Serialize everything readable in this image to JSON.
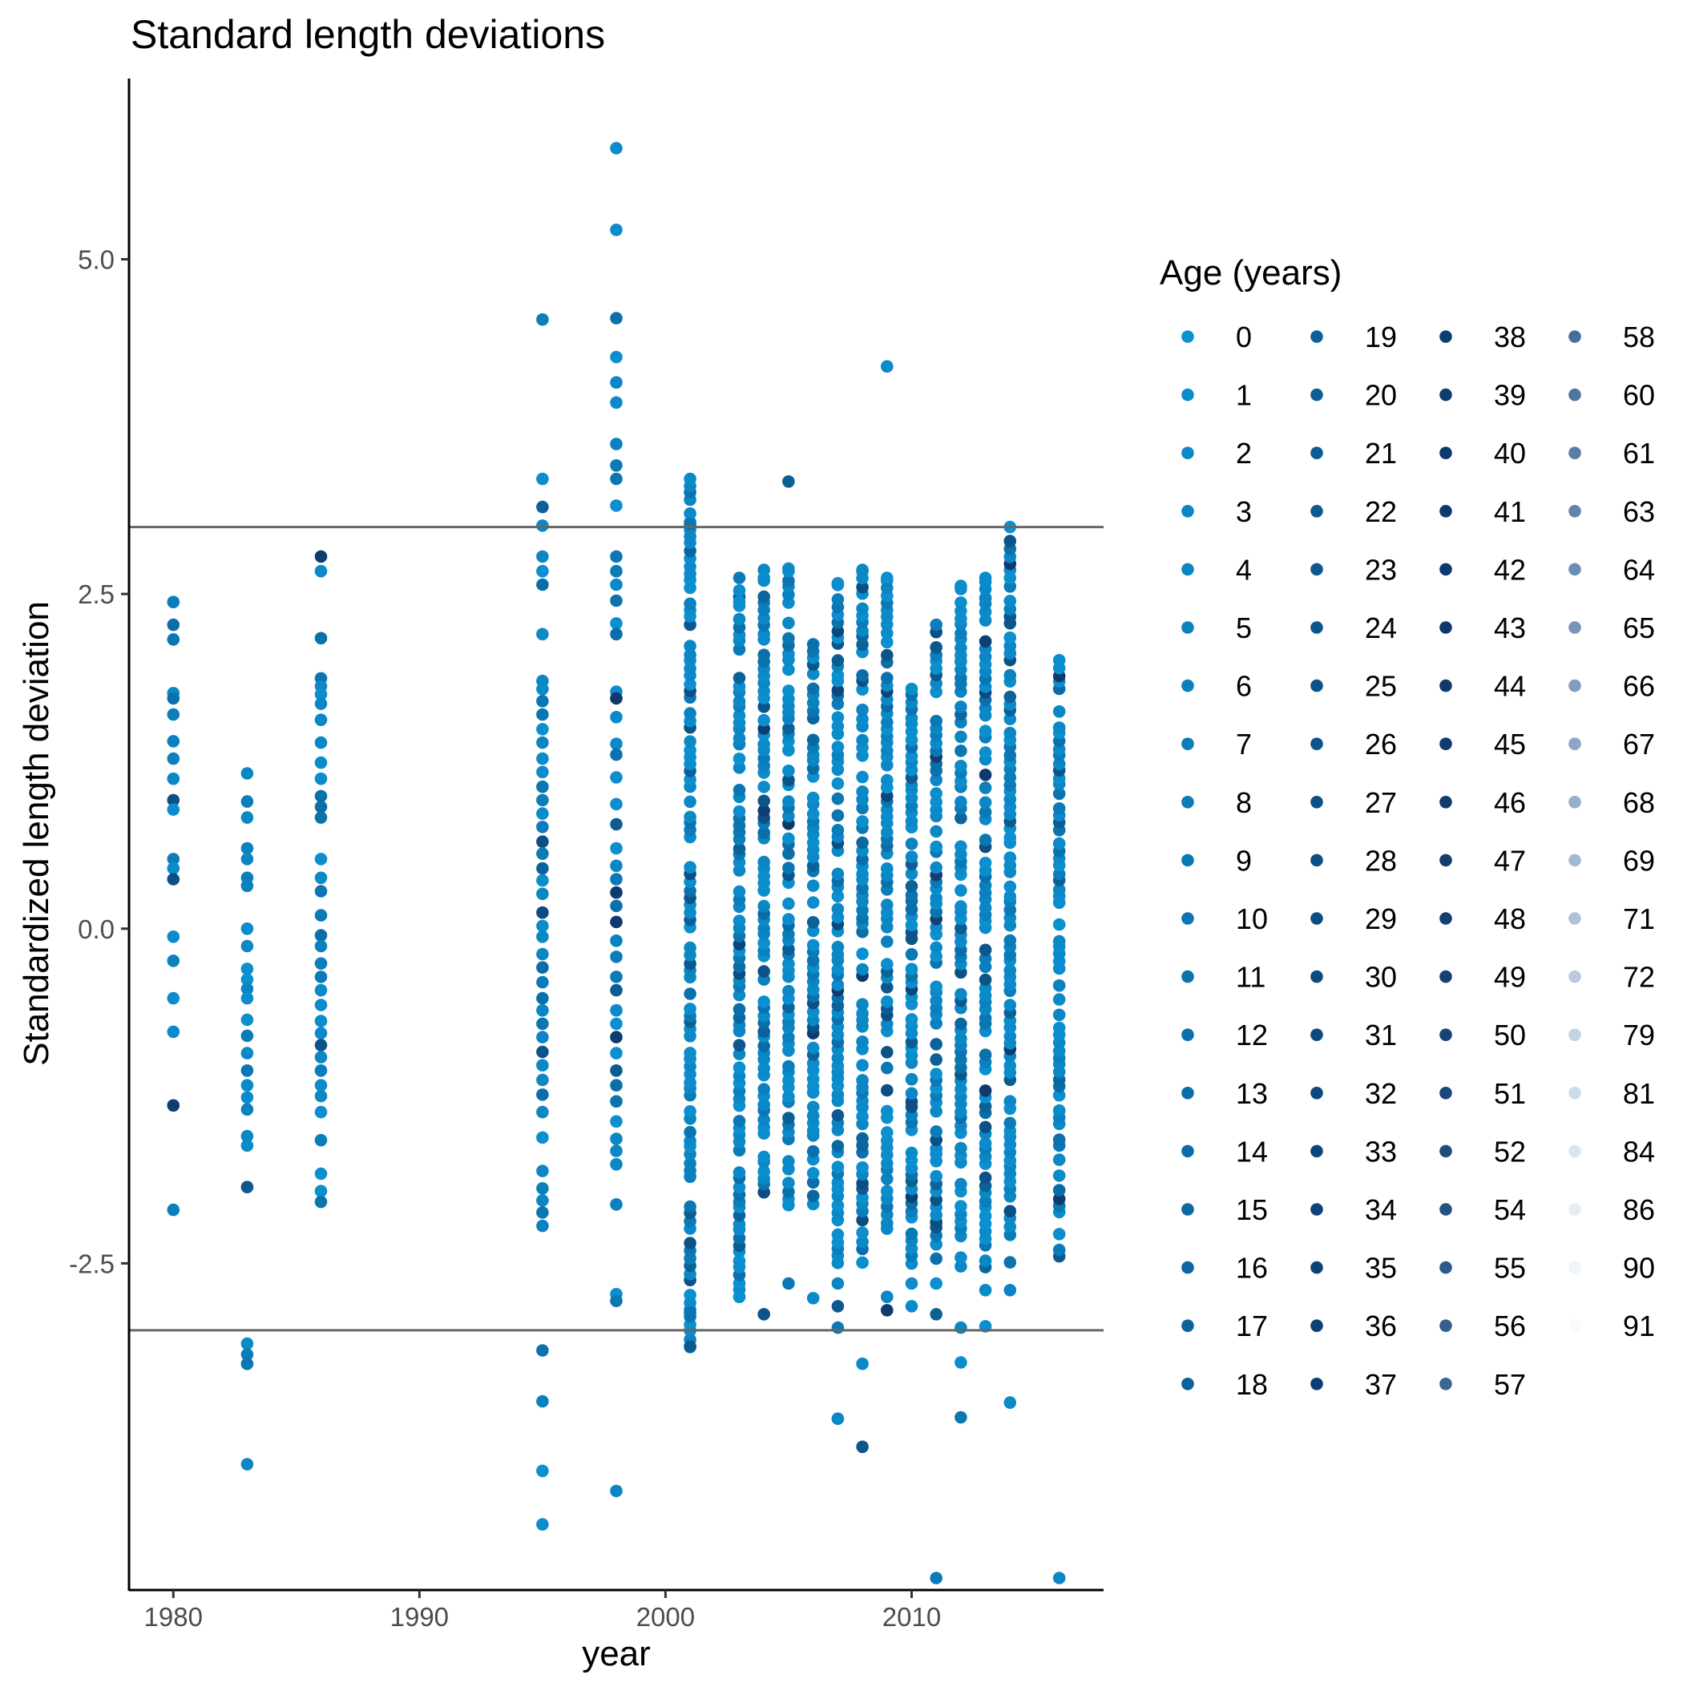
{
  "chart_data": {
    "type": "scatter",
    "title": "Standard length deviations",
    "xlabel": "year",
    "ylabel": "Standardized length deviation",
    "xlim": [
      1978.2,
      2017.8
    ],
    "ylim": [
      -4.94,
      6.35
    ],
    "xticks": [
      1980,
      1990,
      2000,
      2010
    ],
    "xtick_labels": [
      "1980",
      "1990",
      "2000",
      "2010"
    ],
    "yticks": [
      -2.5,
      0,
      2.5,
      5
    ],
    "ytick_labels": [
      "-2.5",
      "0.0",
      "2.5",
      "5.0"
    ],
    "reference_lines": [
      3,
      -3
    ],
    "reference_line_color": "#666666",
    "grid": false,
    "legend": {
      "title": "Age (years)",
      "position": "right",
      "entries": [
        {
          "name": "0",
          "color": "#0b8fcf"
        },
        {
          "name": "1",
          "color": "#0b8ccc"
        },
        {
          "name": "2",
          "color": "#0b8ac9"
        },
        {
          "name": "3",
          "color": "#0b87c6"
        },
        {
          "name": "4",
          "color": "#0b85c3"
        },
        {
          "name": "5",
          "color": "#0b82c0"
        },
        {
          "name": "6",
          "color": "#0b80bd"
        },
        {
          "name": "7",
          "color": "#0b7dba"
        },
        {
          "name": "8",
          "color": "#0b7bb7"
        },
        {
          "name": "9",
          "color": "#0b78b4"
        },
        {
          "name": "10",
          "color": "#0b76b1"
        },
        {
          "name": "11",
          "color": "#0b73ae"
        },
        {
          "name": "12",
          "color": "#0b71ab"
        },
        {
          "name": "13",
          "color": "#0b6ea8"
        },
        {
          "name": "14",
          "color": "#0b6ca5"
        },
        {
          "name": "15",
          "color": "#0b69a2"
        },
        {
          "name": "16",
          "color": "#0b679f"
        },
        {
          "name": "17",
          "color": "#0b649c"
        },
        {
          "name": "18",
          "color": "#0b6299"
        },
        {
          "name": "19",
          "color": "#0c6096"
        },
        {
          "name": "20",
          "color": "#0c5e94"
        },
        {
          "name": "21",
          "color": "#0c5c92"
        },
        {
          "name": "22",
          "color": "#0c5a90"
        },
        {
          "name": "23",
          "color": "#0c588e"
        },
        {
          "name": "24",
          "color": "#0c568c"
        },
        {
          "name": "25",
          "color": "#0c558a"
        },
        {
          "name": "26",
          "color": "#0c5388"
        },
        {
          "name": "27",
          "color": "#0c5186"
        },
        {
          "name": "28",
          "color": "#0c4f84"
        },
        {
          "name": "29",
          "color": "#0c4d82"
        },
        {
          "name": "30",
          "color": "#0c4b80"
        },
        {
          "name": "31",
          "color": "#0c4a7e"
        },
        {
          "name": "32",
          "color": "#0c487c"
        },
        {
          "name": "33",
          "color": "#0c467a"
        },
        {
          "name": "34",
          "color": "#0c4478"
        },
        {
          "name": "35",
          "color": "#0c4276"
        },
        {
          "name": "36",
          "color": "#0c4074"
        },
        {
          "name": "37",
          "color": "#0c3e72"
        },
        {
          "name": "38",
          "color": "#0c3d70"
        },
        {
          "name": "39",
          "color": "#0d3c6f"
        },
        {
          "name": "40",
          "color": "#0d3b6e"
        },
        {
          "name": "41",
          "color": "#0e3a6d"
        },
        {
          "name": "42",
          "color": "#0e396c"
        },
        {
          "name": "43",
          "color": "#0f396c"
        },
        {
          "name": "44",
          "color": "#10396c"
        },
        {
          "name": "45",
          "color": "#113a6d"
        },
        {
          "name": "46",
          "color": "#123b6e"
        },
        {
          "name": "47",
          "color": "#133c6f"
        },
        {
          "name": "48",
          "color": "#143e71"
        },
        {
          "name": "49",
          "color": "#164073"
        },
        {
          "name": "50",
          "color": "#184376"
        },
        {
          "name": "51",
          "color": "#1b477a"
        },
        {
          "name": "52",
          "color": "#204c7e"
        },
        {
          "name": "54",
          "color": "#265283"
        },
        {
          "name": "55",
          "color": "#2d5989"
        },
        {
          "name": "56",
          "color": "#355f8f"
        },
        {
          "name": "57",
          "color": "#3d6695"
        },
        {
          "name": "58",
          "color": "#466d9b"
        },
        {
          "name": "60",
          "color": "#4f75a1"
        },
        {
          "name": "61",
          "color": "#587da7"
        },
        {
          "name": "63",
          "color": "#6285ad"
        },
        {
          "name": "64",
          "color": "#6c8db3"
        },
        {
          "name": "65",
          "color": "#7695b9"
        },
        {
          "name": "66",
          "color": "#819ebf"
        },
        {
          "name": "67",
          "color": "#8ca7c6"
        },
        {
          "name": "68",
          "color": "#97b0cc"
        },
        {
          "name": "69",
          "color": "#a2b9d2"
        },
        {
          "name": "71",
          "color": "#adc2d8"
        },
        {
          "name": "72",
          "color": "#b8cbde"
        },
        {
          "name": "79",
          "color": "#c3d4e4"
        },
        {
          "name": "81",
          "color": "#cedcea"
        },
        {
          "name": "84",
          "color": "#d9e5ef"
        },
        {
          "name": "86",
          "color": "#e4edf4"
        },
        {
          "name": "90",
          "color": "#eef4f8"
        },
        {
          "name": "91",
          "color": "#f8fafc"
        }
      ]
    },
    "series": [
      {
        "x": 1980,
        "y": [
          2.44,
          2.27,
          2.16,
          1.76,
          1.72,
          1.6,
          1.4,
          1.27,
          1.12,
          0.96,
          0.89,
          0.52,
          0.45,
          0.37,
          -0.06,
          -0.24,
          -0.52,
          -0.77,
          -1.32,
          -2.1
        ]
      },
      {
        "x": 1983,
        "y": [
          1.16,
          0.95,
          0.83,
          0.6,
          0.52,
          0.38,
          0.32,
          0.0,
          -0.13,
          -0.3,
          -0.38,
          -0.45,
          -0.52,
          -0.68,
          -0.8,
          -0.93,
          -1.06,
          -1.17,
          -1.26,
          -1.35,
          -1.55,
          -1.62,
          -1.93,
          -3.1,
          -3.18,
          -3.25,
          -4.0
        ]
      },
      {
        "x": 1986,
        "y": [
          2.78,
          2.67,
          2.17,
          1.87,
          1.81,
          1.75,
          1.68,
          1.56,
          1.39,
          1.24,
          1.12,
          0.99,
          0.91,
          0.83,
          0.52,
          0.38,
          0.28,
          0.1,
          -0.05,
          -0.13,
          -0.26,
          -0.36,
          -0.46,
          -0.57,
          -0.69,
          -0.78,
          -0.87,
          -0.96,
          -1.06,
          -1.17,
          -1.25,
          -1.37,
          -1.58,
          -1.83,
          -1.96,
          -2.04
        ]
      },
      {
        "x": 1995,
        "y": [
          4.55,
          3.36,
          3.15,
          3.01,
          2.78,
          2.67,
          2.57,
          2.2,
          1.85,
          1.79,
          1.7,
          1.6,
          1.49,
          1.39,
          1.27,
          1.17,
          1.06,
          0.96,
          0.86,
          0.76,
          0.65,
          0.56,
          0.45,
          0.36,
          0.26,
          0.12,
          0.02,
          -0.06,
          -0.19,
          -0.29,
          -0.4,
          -0.52,
          -0.61,
          -0.71,
          -0.81,
          -0.92,
          -1.02,
          -1.13,
          -1.24,
          -1.37,
          -1.56,
          -1.81,
          -1.94,
          -2.03,
          -2.12,
          -2.22,
          -3.15,
          -3.53,
          -4.05,
          -4.45
        ]
      },
      {
        "x": 1998,
        "y": [
          5.83,
          5.22,
          4.56,
          4.27,
          4.08,
          3.93,
          3.62,
          3.46,
          3.36,
          3.16,
          2.78,
          2.67,
          2.57,
          2.45,
          2.28,
          2.2,
          1.77,
          1.72,
          1.58,
          1.38,
          1.3,
          1.13,
          0.93,
          0.78,
          0.6,
          0.47,
          0.37,
          0.27,
          0.17,
          0.05,
          -0.09,
          -0.21,
          -0.36,
          -0.46,
          -0.61,
          -0.71,
          -0.81,
          -0.93,
          -1.06,
          -1.17,
          -1.29,
          -1.44,
          -1.57,
          -1.66,
          -1.76,
          -2.06,
          -2.73,
          -2.78,
          -4.2
        ]
      }
    ],
    "dense_columns": [
      {
        "x": 2001,
        "ymin": -3.12,
        "ymax": 3.36,
        "extra": [
          3.36,
          3.02,
          -2.87,
          -3.12
        ]
      },
      {
        "x": 2003,
        "ymin": -2.75,
        "ymax": 2.62,
        "extra": [
          2.62,
          2.44,
          -2.75
        ]
      },
      {
        "x": 2004,
        "ymin": -2.08,
        "ymax": 2.68,
        "extra": [
          2.68,
          2.62,
          -2.88
        ]
      },
      {
        "x": 2005,
        "ymin": -2.07,
        "ymax": 2.69,
        "extra": [
          3.34,
          2.69,
          -2.65
        ]
      },
      {
        "x": 2006,
        "ymin": -2.05,
        "ymax": 2.15,
        "extra": [
          -2.76
        ]
      },
      {
        "x": 2007,
        "ymin": -2.5,
        "ymax": 2.58,
        "extra": [
          2.58,
          -2.65,
          -2.82,
          -2.98,
          -3.66
        ]
      },
      {
        "x": 2008,
        "ymin": -2.5,
        "ymax": 2.68,
        "extra": [
          2.68,
          -3.25,
          -3.87
        ]
      },
      {
        "x": 2009,
        "ymin": -2.3,
        "ymax": 2.62,
        "extra": [
          4.2,
          2.62,
          2.14,
          -2.75,
          -2.85
        ]
      },
      {
        "x": 2010,
        "ymin": -2.55,
        "ymax": 1.85,
        "extra": [
          -2.65,
          -2.82
        ]
      },
      {
        "x": 2011,
        "ymin": -2.46,
        "ymax": 2.28,
        "extra": [
          -2.65,
          -2.88,
          -4.85
        ]
      },
      {
        "x": 2012,
        "ymin": -2.52,
        "ymax": 2.56,
        "extra": [
          2.56,
          2.0,
          -2.98,
          -3.24,
          -3.65
        ]
      },
      {
        "x": 2013,
        "ymin": -2.53,
        "ymax": 2.62,
        "extra": [
          2.62,
          -2.7,
          -2.97
        ]
      },
      {
        "x": 2014,
        "ymin": -2.5,
        "ymax": 3.0,
        "extra": [
          3.0,
          2.62,
          -2.7,
          -3.54
        ]
      },
      {
        "x": 2016,
        "ymin": -2.45,
        "ymax": 2.05,
        "extra": [
          -4.85
        ]
      }
    ]
  }
}
